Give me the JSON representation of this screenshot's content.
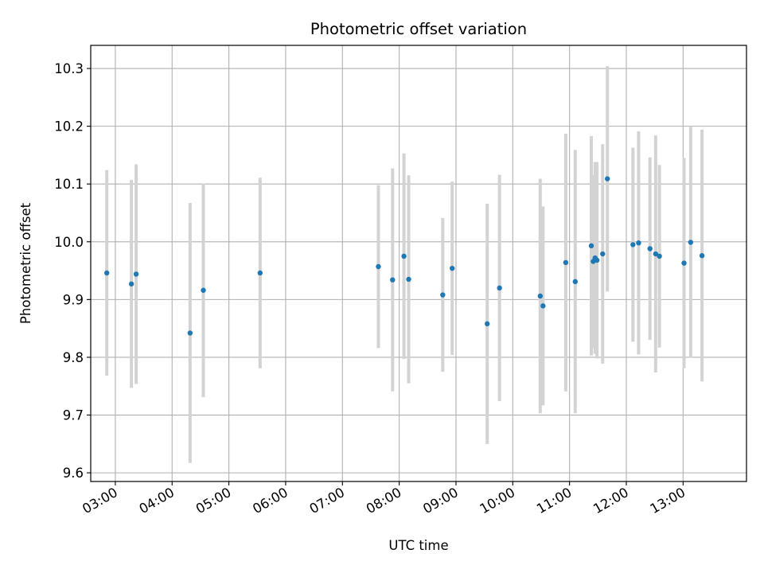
{
  "chart_data": {
    "type": "scatter",
    "title": "Photometric offset variation",
    "xlabel": "UTC time",
    "ylabel": "Photometric offset",
    "x_ticks": [
      "03:00",
      "04:00",
      "05:00",
      "06:00",
      "07:00",
      "08:00",
      "09:00",
      "10:00",
      "11:00",
      "12:00",
      "13:00"
    ],
    "y_ticks": [
      "9.6",
      "9.7",
      "9.8",
      "9.9",
      "10.0",
      "10.1",
      "10.2",
      "10.3"
    ],
    "ylim": [
      9.585,
      10.34
    ],
    "xlim": [
      "02:34",
      "14:07"
    ],
    "grid": true,
    "error_bar_color": "#d3d3d3",
    "point_color": "#1f77b4",
    "points": [
      {
        "x": "02:51",
        "y": 9.946,
        "err": 0.178
      },
      {
        "x": "03:17",
        "y": 9.927,
        "err": 0.18
      },
      {
        "x": "03:22",
        "y": 9.944,
        "err": 0.19
      },
      {
        "x": "04:19",
        "y": 9.842,
        "err": 0.225
      },
      {
        "x": "04:33",
        "y": 9.916,
        "err": 0.185
      },
      {
        "x": "05:33",
        "y": 9.946,
        "err": 0.165
      },
      {
        "x": "07:38",
        "y": 9.957,
        "err": 0.141
      },
      {
        "x": "07:53",
        "y": 9.934,
        "err": 0.193
      },
      {
        "x": "08:05",
        "y": 9.975,
        "err": 0.178
      },
      {
        "x": "08:10",
        "y": 9.935,
        "err": 0.18
      },
      {
        "x": "08:46",
        "y": 9.908,
        "err": 0.133
      },
      {
        "x": "08:56",
        "y": 9.954,
        "err": 0.15
      },
      {
        "x": "09:33",
        "y": 9.858,
        "err": 0.208
      },
      {
        "x": "09:46",
        "y": 9.92,
        "err": 0.196
      },
      {
        "x": "10:29",
        "y": 9.906,
        "err": 0.203
      },
      {
        "x": "10:32",
        "y": 9.889,
        "err": 0.172
      },
      {
        "x": "10:56",
        "y": 9.964,
        "err": 0.223
      },
      {
        "x": "11:06",
        "y": 9.931,
        "err": 0.228
      },
      {
        "x": "11:23",
        "y": 9.993,
        "err": 0.19
      },
      {
        "x": "11:25",
        "y": 9.966,
        "err": 0.15
      },
      {
        "x": "11:27",
        "y": 9.972,
        "err": 0.166
      },
      {
        "x": "11:29",
        "y": 9.968,
        "err": 0.17
      },
      {
        "x": "11:35",
        "y": 9.979,
        "err": 0.19
      },
      {
        "x": "11:40",
        "y": 10.109,
        "err": 0.195
      },
      {
        "x": "12:07",
        "y": 9.995,
        "err": 0.168
      },
      {
        "x": "12:13",
        "y": 9.998,
        "err": 0.193
      },
      {
        "x": "12:25",
        "y": 9.988,
        "err": 0.158
      },
      {
        "x": "12:31",
        "y": 9.979,
        "err": 0.205
      },
      {
        "x": "12:35",
        "y": 9.975,
        "err": 0.158
      },
      {
        "x": "13:01",
        "y": 9.963,
        "err": 0.182
      },
      {
        "x": "13:08",
        "y": 9.999,
        "err": 0.2
      },
      {
        "x": "13:20",
        "y": 9.976,
        "err": 0.218
      }
    ]
  }
}
